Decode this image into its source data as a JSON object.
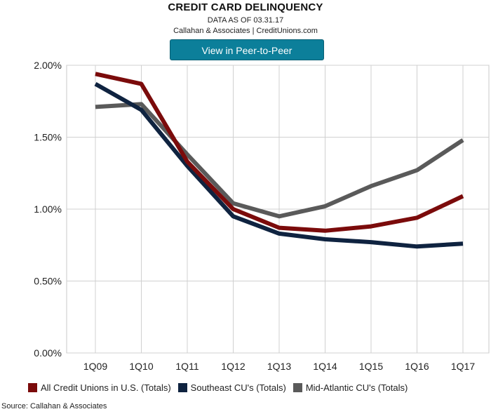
{
  "header": {
    "title": "CREDIT CARD DELINQUENCY",
    "subtitle": "DATA AS OF 03.31.17",
    "credit": "Callahan & Associates | CreditUnions.com",
    "button_label": "View in Peer-to-Peer"
  },
  "chart_data": {
    "type": "line",
    "categories": [
      "1Q09",
      "1Q10",
      "1Q11",
      "1Q12",
      "1Q13",
      "1Q14",
      "1Q15",
      "1Q16",
      "1Q17"
    ],
    "y_ticks": [
      "0.00%",
      "0.50%",
      "1.00%",
      "1.50%",
      "2.00%"
    ],
    "ylim": [
      0,
      2.0
    ],
    "grid": true,
    "legend_position": "bottom",
    "series": [
      {
        "name": "All Credit Unions in U.S. (Totals)",
        "color": "#7b0b0b",
        "values": [
          1.94,
          1.87,
          1.33,
          1.0,
          0.87,
          0.85,
          0.88,
          0.94,
          1.09
        ]
      },
      {
        "name": "Southeast CU's (Totals)",
        "color": "#0f2340",
        "values": [
          1.87,
          1.69,
          1.3,
          0.95,
          0.83,
          0.79,
          0.77,
          0.74,
          0.76
        ]
      },
      {
        "name": "Mid-Atlantic CU's (Totals)",
        "color": "#5a5a5a",
        "values": [
          1.71,
          1.73,
          1.38,
          1.04,
          0.95,
          1.02,
          1.16,
          1.27,
          1.48
        ]
      }
    ]
  },
  "footer": {
    "source": "Source: Callahan & Associates"
  }
}
